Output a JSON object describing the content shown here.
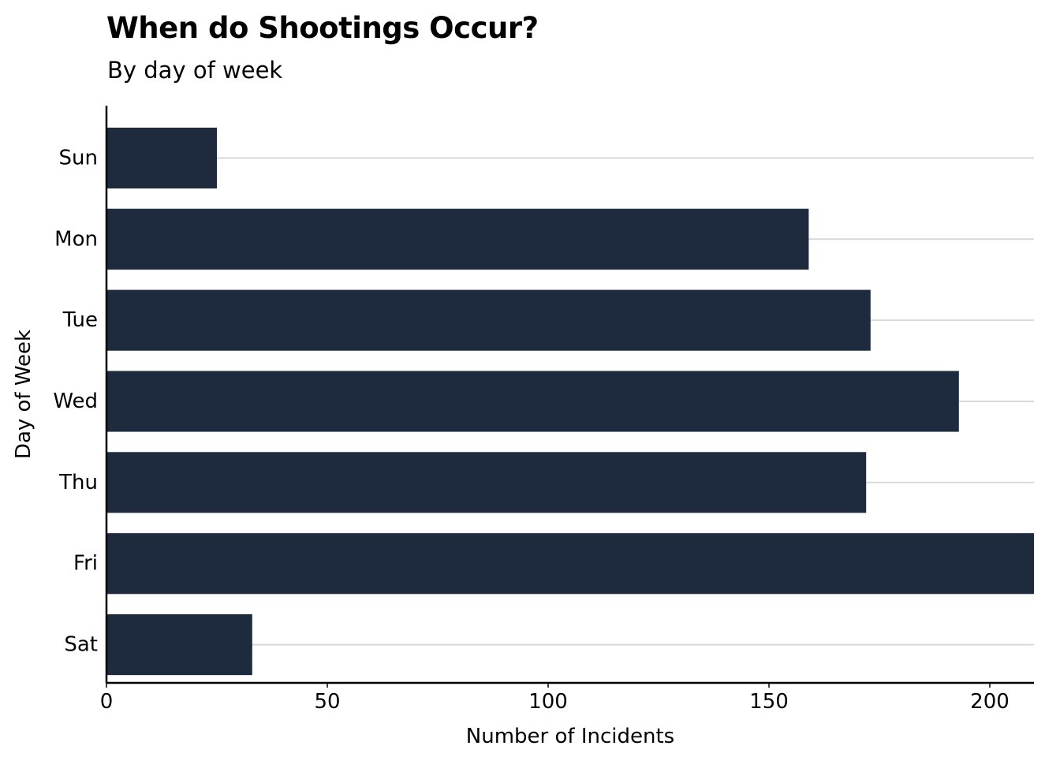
{
  "chart_data": {
    "type": "bar",
    "orientation": "horizontal",
    "title": "When do Shootings Occur?",
    "subtitle": "By day of week",
    "xlabel": "Number of Incidents",
    "ylabel": "Day of Week",
    "categories": [
      "Sun",
      "Mon",
      "Tue",
      "Wed",
      "Thu",
      "Fri",
      "Sat"
    ],
    "values": [
      25,
      159,
      173,
      193,
      172,
      210,
      33
    ],
    "xlim": [
      0,
      210
    ],
    "x_ticks": [
      0,
      50,
      100,
      150,
      200
    ],
    "grid": "horizontal",
    "legend": "none",
    "colors": {
      "bar": "#1e2b3e",
      "grid": "#d9d9d9",
      "axis": "#000000"
    }
  }
}
